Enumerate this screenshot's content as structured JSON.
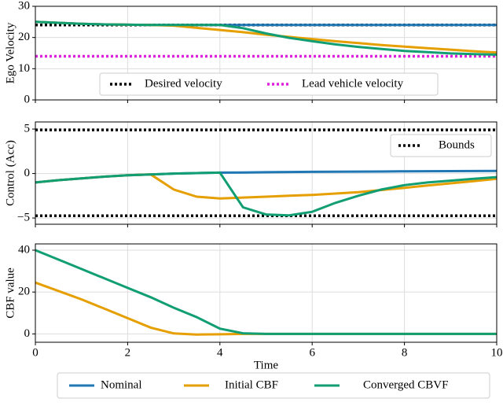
{
  "chart_data": [
    {
      "type": "line",
      "ylabel": "Ego Velocity",
      "xlim": [
        0,
        10
      ],
      "xticks": [
        0,
        2,
        4,
        6,
        8,
        10
      ],
      "ylim": [
        0,
        30
      ],
      "yticks": [
        0,
        10,
        20,
        30
      ],
      "grid": true,
      "legend": "lower center",
      "x": [
        0,
        0.5,
        1,
        1.5,
        2,
        2.5,
        3,
        3.5,
        4,
        4.5,
        5,
        5.5,
        6,
        6.5,
        7,
        7.5,
        8,
        8.5,
        9,
        9.5,
        10
      ],
      "hlines": [
        {
          "name": "Desired velocity",
          "color": "#000000",
          "values": [
            24
          ]
        },
        {
          "name": "Lead vehicle velocity",
          "color": "#dd22dd",
          "values": [
            14
          ]
        }
      ],
      "series": [
        {
          "color": "#1f77b4",
          "values": [
            25,
            24.7,
            24.4,
            24.2,
            24.1,
            24,
            24,
            24,
            24,
            24,
            24,
            24,
            24,
            24,
            24,
            24,
            24,
            24,
            24,
            24,
            24
          ]
        },
        {
          "color": "#e69f00",
          "values": [
            25,
            24.7,
            24.4,
            24.2,
            24.1,
            24,
            23.8,
            23.1,
            22.4,
            21.7,
            20.9,
            20.2,
            19.5,
            18.8,
            18.2,
            17.6,
            17.1,
            16.6,
            16.1,
            15.6,
            15.2
          ]
        },
        {
          "color": "#129e73",
          "values": [
            25,
            24.7,
            24.4,
            24.2,
            24.1,
            24,
            24,
            24,
            24,
            23,
            21.3,
            19.9,
            18.8,
            17.8,
            17,
            16.3,
            15.7,
            15.3,
            14.9,
            14.7,
            14.5
          ]
        }
      ]
    },
    {
      "type": "line",
      "ylabel": "Control (Acc)",
      "xlim": [
        0,
        10
      ],
      "xticks": [
        0,
        2,
        4,
        6,
        8,
        10
      ],
      "ylim": [
        -5.7,
        5.8
      ],
      "yticks": [
        {
          "value": -5,
          "label": "−5"
        },
        0,
        5
      ],
      "grid": true,
      "legend": "upper right",
      "x": [
        0,
        0.5,
        1,
        1.5,
        2,
        2.5,
        3,
        3.5,
        4,
        4.5,
        5,
        5.5,
        6,
        6.5,
        7,
        7.5,
        8,
        8.5,
        9,
        9.5,
        10
      ],
      "hlines": [
        {
          "name": "Bounds",
          "color": "#000000",
          "values": [
            4.9,
            -4.75
          ]
        }
      ],
      "series": [
        {
          "name": "Nominal",
          "color": "#1f77b4",
          "values": [
            -1,
            -0.75,
            -0.55,
            -0.35,
            -0.2,
            -0.1,
            0,
            0.05,
            0.1,
            0.12,
            0.15,
            0.17,
            0.19,
            0.2,
            0.22,
            0.23,
            0.25,
            0.26,
            0.27,
            0.28,
            0.3
          ]
        },
        {
          "name": "Initial CBF",
          "color": "#e69f00",
          "values": [
            -1,
            -0.75,
            -0.55,
            -0.35,
            -0.2,
            -0.1,
            -1.8,
            -2.6,
            -2.8,
            -2.7,
            -2.6,
            -2.5,
            -2.4,
            -2.25,
            -2.1,
            -1.85,
            -1.6,
            -1.35,
            -1.1,
            -0.85,
            -0.6
          ]
        },
        {
          "name": "Converged CBVF",
          "color": "#129e73",
          "values": [
            -1,
            -0.75,
            -0.55,
            -0.35,
            -0.2,
            -0.1,
            0,
            0.05,
            0.1,
            -3.8,
            -4.6,
            -4.7,
            -4.3,
            -3.3,
            -2.5,
            -1.8,
            -1.3,
            -1,
            -0.8,
            -0.6,
            -0.4
          ]
        }
      ]
    },
    {
      "type": "line",
      "ylabel": "CBF value",
      "xlabel": "Time",
      "xlim": [
        0,
        10
      ],
      "xticks": [
        0,
        2,
        4,
        6,
        8,
        10
      ],
      "ylim": [
        -4,
        43
      ],
      "yticks": [
        0,
        20,
        40
      ],
      "grid": true,
      "x": [
        0,
        0.5,
        1,
        1.5,
        2,
        2.5,
        3,
        3.5,
        4,
        4.5,
        5,
        5.5,
        6,
        6.5,
        7,
        7.5,
        8,
        8.5,
        9,
        9.5,
        10
      ],
      "series": [
        {
          "color": "#e69f00",
          "values": [
            24.5,
            20.5,
            16.5,
            12,
            7.5,
            3,
            0.2,
            -0.3,
            -0.2,
            0,
            0,
            0,
            0,
            0,
            0,
            0,
            0,
            0,
            0,
            0,
            0
          ]
        },
        {
          "color": "#129e73",
          "values": [
            40,
            35.5,
            31,
            26.5,
            22,
            17.5,
            12.5,
            8,
            2.5,
            0.3,
            0,
            0,
            0,
            0,
            0,
            0,
            0,
            0,
            0,
            0,
            0
          ]
        }
      ]
    }
  ]
}
